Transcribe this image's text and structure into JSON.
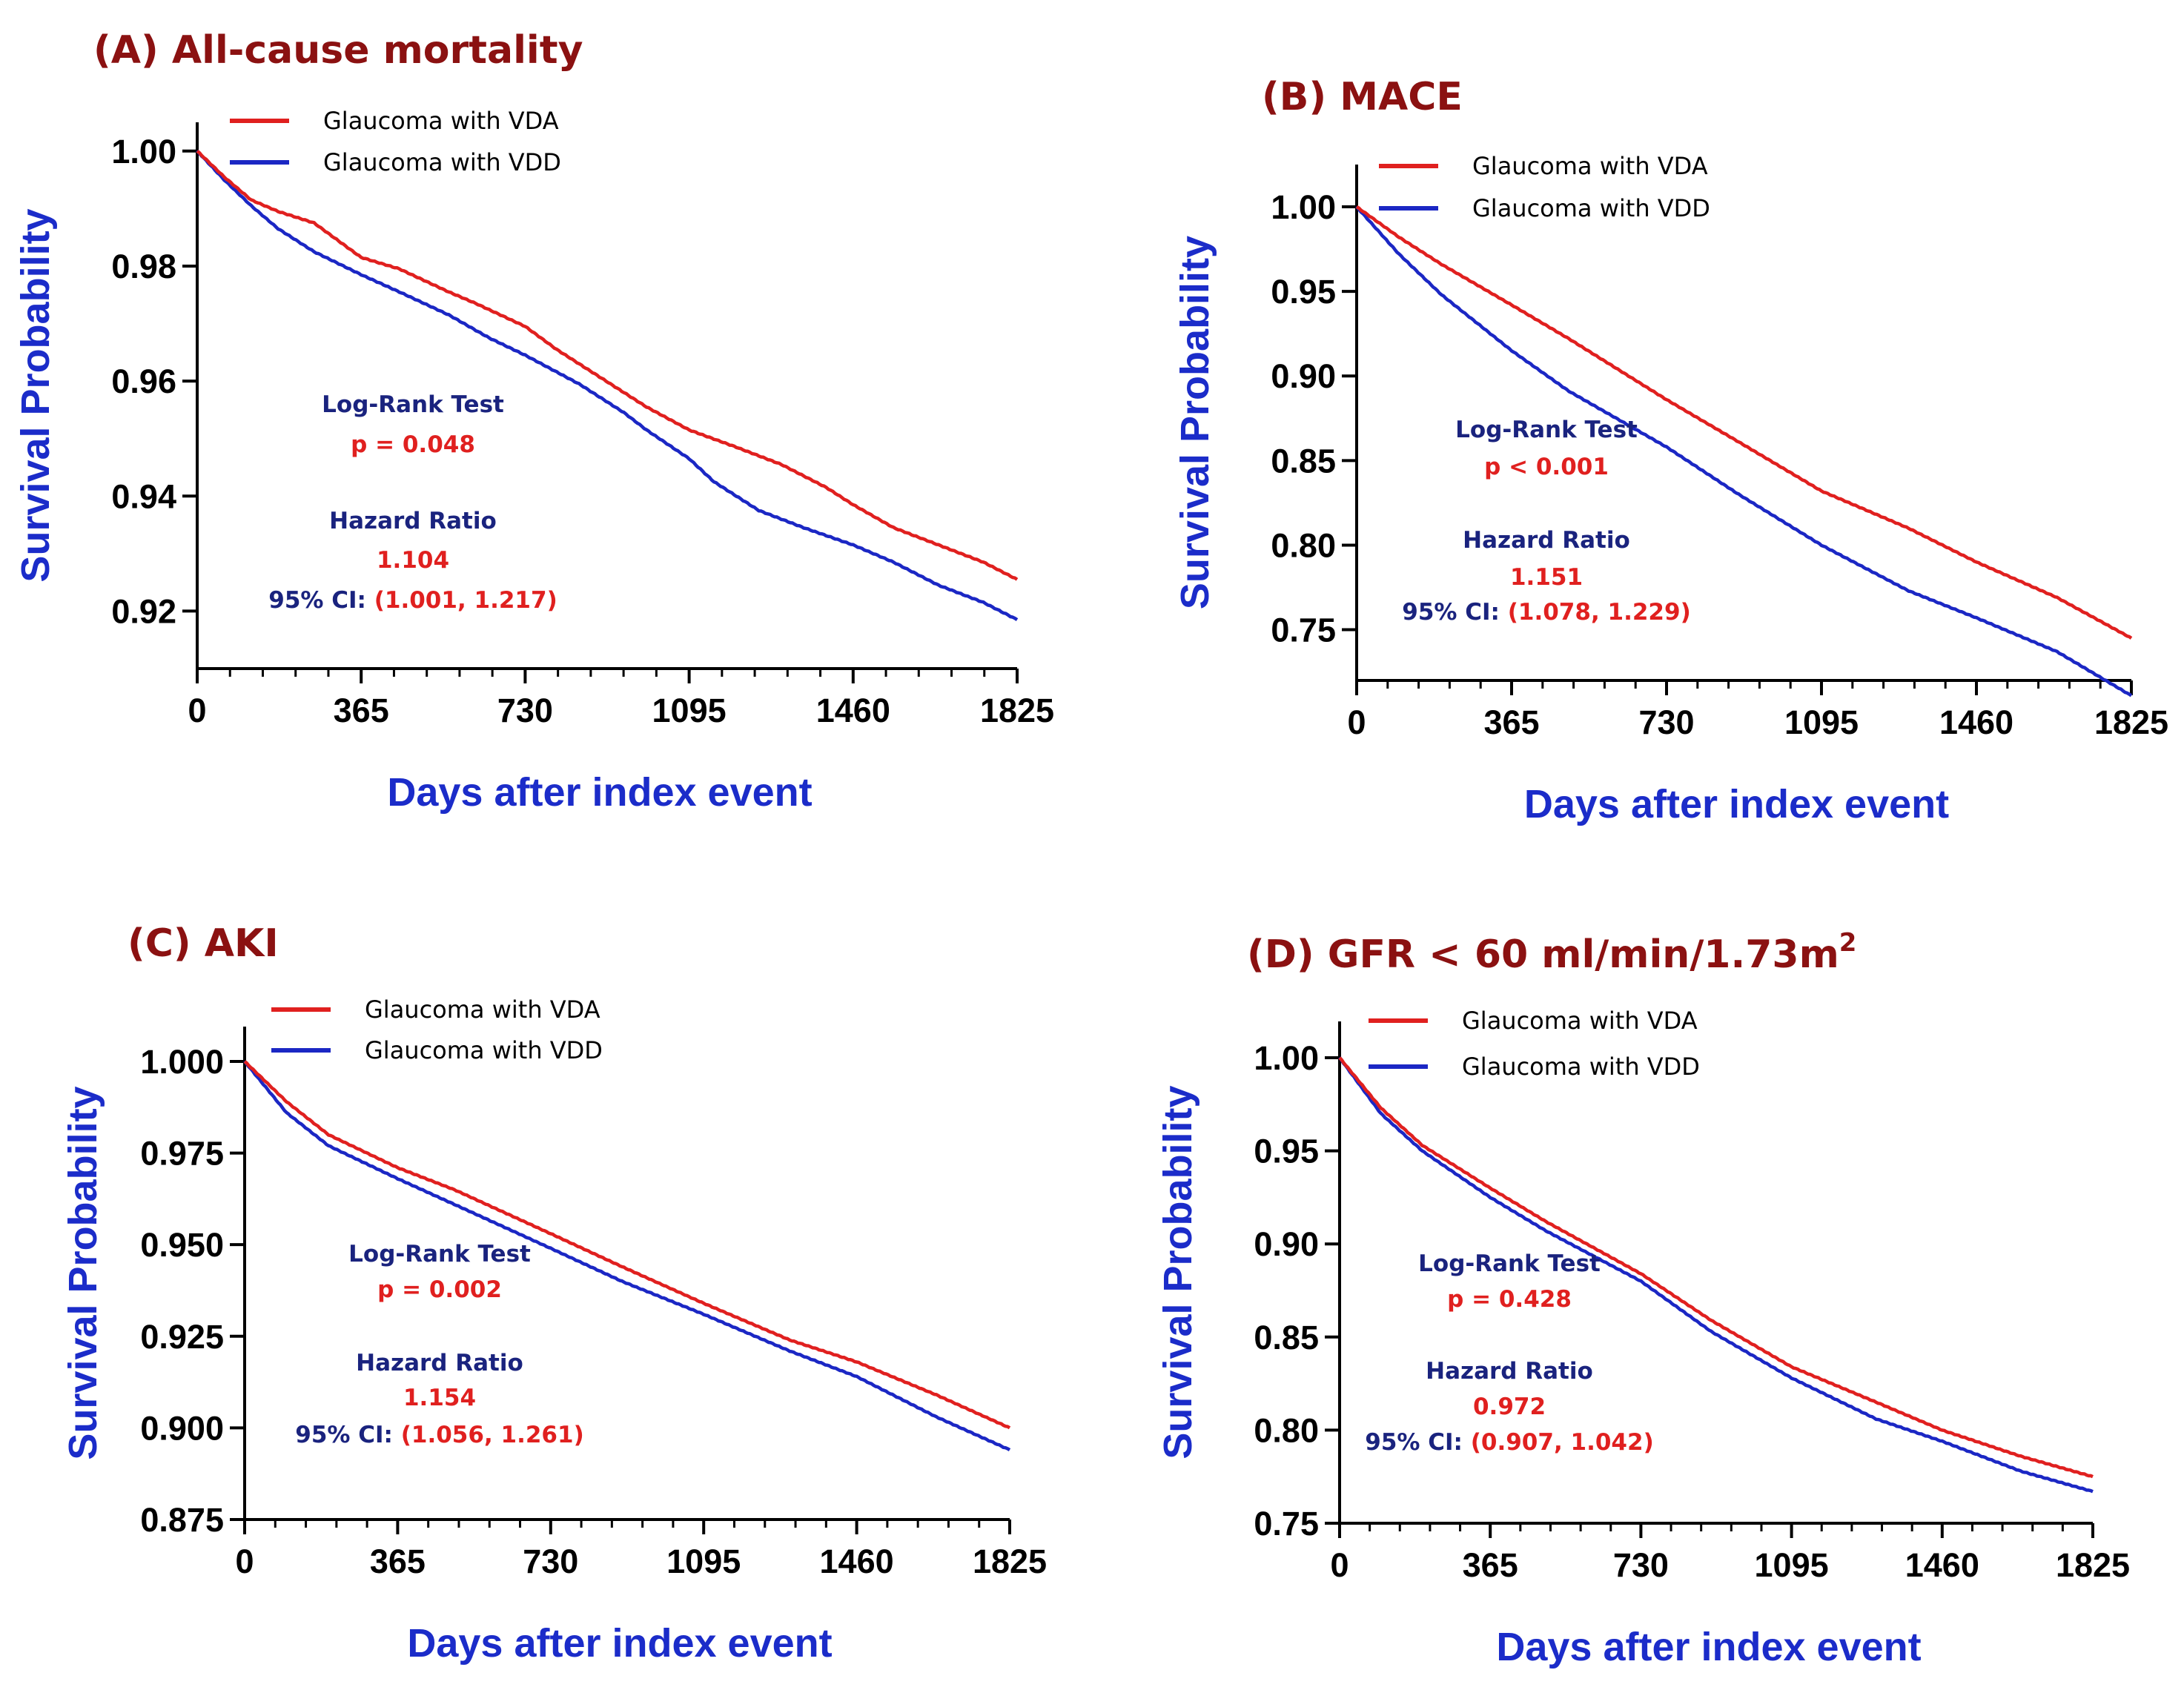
{
  "colors": {
    "title": "#8B1111",
    "axis_label": "#1B2CC9",
    "annotation_label": "#1A237E",
    "annotation_value": "#E0201F",
    "vda": "#E0201F",
    "vdd": "#1B27C4"
  },
  "chart_data": [
    {
      "id": "A",
      "type": "line",
      "title": "(A) All-cause mortality",
      "title_superscript": "",
      "xlabel": "Days after index event",
      "ylabel": "Survival Probability",
      "xlim": [
        0,
        1825
      ],
      "ylim": [
        0.91,
        1.005
      ],
      "xticks": [
        0,
        365,
        730,
        1095,
        1460,
        1825
      ],
      "xtick_labels": [
        "0",
        "365",
        "730",
        "1095",
        "1460",
        "1825"
      ],
      "yticks": [
        0.92,
        0.94,
        0.96,
        0.98,
        1.0
      ],
      "ytick_labels": [
        "0.92",
        "0.94",
        "0.96",
        "0.98",
        "1.00"
      ],
      "legend_placement": "top-left",
      "annotation": {
        "test_label": "Log-Rank Test",
        "p_value": "p = 0.048",
        "hr_label": "Hazard Ratio",
        "hr_value": "1.104",
        "ci_label": "95% CI:",
        "ci_value": "(1.001, 1.217)"
      },
      "series": [
        {
          "name": "Glaucoma with VDA",
          "color": "#E0201F",
          "x": [
            0,
            60,
            120,
            180,
            260,
            330,
            365,
            450,
            560,
            620,
            730,
            800,
            900,
            1000,
            1095,
            1200,
            1300,
            1400,
            1460,
            1550,
            1650,
            1750,
            1825
          ],
          "y": [
            1.0,
            0.9955,
            0.9915,
            0.9895,
            0.9875,
            0.9835,
            0.9815,
            0.9795,
            0.9755,
            0.9735,
            0.9695,
            0.9655,
            0.9605,
            0.9555,
            0.9515,
            0.9485,
            0.9455,
            0.9415,
            0.9385,
            0.9345,
            0.9315,
            0.9285,
            0.9255
          ]
        },
        {
          "name": "Glaucoma with VDD",
          "color": "#1B27C4",
          "x": [
            0,
            60,
            120,
            180,
            260,
            365,
            450,
            560,
            650,
            730,
            850,
            950,
            1000,
            1095,
            1150,
            1250,
            1350,
            1460,
            1550,
            1650,
            1750,
            1825
          ],
          "y": [
            1.0,
            0.995,
            0.9905,
            0.9865,
            0.9825,
            0.9785,
            0.9755,
            0.9715,
            0.9675,
            0.9645,
            0.9595,
            0.9545,
            0.9515,
            0.9465,
            0.9425,
            0.9375,
            0.9345,
            0.9315,
            0.9285,
            0.9245,
            0.9215,
            0.9185
          ]
        }
      ]
    },
    {
      "id": "B",
      "type": "line",
      "title": "(B) MACE",
      "title_superscript": "",
      "xlabel": "Days after index event",
      "ylabel": "Survival Probability",
      "xlim": [
        0,
        1825
      ],
      "ylim": [
        0.72,
        1.025
      ],
      "xticks": [
        0,
        365,
        730,
        1095,
        1460,
        1825
      ],
      "xtick_labels": [
        "0",
        "365",
        "730",
        "1095",
        "1460",
        "1825"
      ],
      "yticks": [
        0.75,
        0.8,
        0.85,
        0.9,
        0.95,
        1.0
      ],
      "ytick_labels": [
        "0.75",
        "0.80",
        "0.85",
        "0.90",
        "0.95",
        "1.00"
      ],
      "legend_placement": "top-left",
      "annotation": {
        "test_label": "Log-Rank Test",
        "p_value": "p < 0.001",
        "hr_label": "Hazard Ratio",
        "hr_value": "1.151",
        "ci_label": "95% CI:",
        "ci_value": "(1.078, 1.229)"
      },
      "series": [
        {
          "name": "Glaucoma with VDA",
          "color": "#E0201F",
          "x": [
            0,
            100,
            200,
            365,
            500,
            730,
            900,
            1095,
            1300,
            1460,
            1650,
            1825
          ],
          "y": [
            1.0,
            0.982,
            0.966,
            0.942,
            0.922,
            0.886,
            0.861,
            0.832,
            0.81,
            0.79,
            0.769,
            0.745
          ]
        },
        {
          "name": "Glaucoma with VDD",
          "color": "#1B27C4",
          "x": [
            0,
            100,
            200,
            365,
            500,
            730,
            900,
            1095,
            1300,
            1460,
            1650,
            1825
          ],
          "y": [
            1.0,
            0.972,
            0.948,
            0.915,
            0.891,
            0.858,
            0.83,
            0.8,
            0.773,
            0.757,
            0.737,
            0.711
          ]
        }
      ]
    },
    {
      "id": "C",
      "type": "line",
      "title": "(C) AKI",
      "title_superscript": "",
      "xlabel": "Days after index event",
      "ylabel": "Survival Probability",
      "xlim": [
        0,
        1825
      ],
      "ylim": [
        0.875,
        1.0095
      ],
      "xticks": [
        0,
        365,
        730,
        1095,
        1460,
        1825
      ],
      "xtick_labels": [
        "0",
        "365",
        "730",
        "1095",
        "1460",
        "1825"
      ],
      "yticks": [
        0.875,
        0.9,
        0.925,
        0.95,
        0.975,
        1.0
      ],
      "ytick_labels": [
        "0.875",
        "0.900",
        "0.925",
        "0.950",
        "0.975",
        "1.000"
      ],
      "legend_placement": "top-left",
      "annotation": {
        "test_label": "Log-Rank Test",
        "p_value": "p = 0.002",
        "hr_label": "Hazard Ratio",
        "hr_value": "1.154",
        "ci_label": "95% CI:",
        "ci_value": "(1.056, 1.261)"
      },
      "series": [
        {
          "name": "Glaucoma with VDA",
          "color": "#E0201F",
          "x": [
            0,
            100,
            200,
            365,
            500,
            730,
            900,
            1095,
            1300,
            1460,
            1650,
            1825
          ],
          "y": [
            1.0,
            0.989,
            0.98,
            0.971,
            0.965,
            0.953,
            0.944,
            0.934,
            0.924,
            0.918,
            0.909,
            0.9
          ]
        },
        {
          "name": "Glaucoma with VDD",
          "color": "#1B27C4",
          "x": [
            0,
            100,
            200,
            365,
            500,
            730,
            900,
            1095,
            1300,
            1460,
            1650,
            1825
          ],
          "y": [
            1.0,
            0.986,
            0.977,
            0.968,
            0.961,
            0.949,
            0.94,
            0.931,
            0.921,
            0.914,
            0.903,
            0.894
          ]
        }
      ]
    },
    {
      "id": "D",
      "type": "line",
      "title": "(D) GFR < 60 ml/min/1.73m",
      "title_superscript": "2",
      "xlabel": "Days after index event",
      "ylabel": "Survival Probability",
      "xlim": [
        0,
        1825
      ],
      "ylim": [
        0.75,
        1.0195
      ],
      "xticks": [
        0,
        365,
        730,
        1095,
        1460,
        1825
      ],
      "xtick_labels": [
        "0",
        "365",
        "730",
        "1095",
        "1460",
        "1825"
      ],
      "yticks": [
        0.75,
        0.8,
        0.85,
        0.9,
        0.95,
        1.0
      ],
      "ytick_labels": [
        "0.75",
        "0.80",
        "0.85",
        "0.90",
        "0.95",
        "1.00"
      ],
      "legend_placement": "top-left",
      "annotation": {
        "test_label": "Log-Rank Test",
        "p_value": "p = 0.428",
        "hr_label": "Hazard Ratio",
        "hr_value": "0.972",
        "ci_label": "95% CI:",
        "ci_value": "(0.907, 1.042)"
      },
      "series": [
        {
          "name": "Glaucoma with VDA",
          "color": "#E0201F",
          "x": [
            0,
            100,
            200,
            365,
            500,
            730,
            900,
            1095,
            1300,
            1460,
            1650,
            1825
          ],
          "y": [
            1.0,
            0.973,
            0.953,
            0.93,
            0.912,
            0.884,
            0.859,
            0.834,
            0.815,
            0.8,
            0.786,
            0.775
          ]
        },
        {
          "name": "Glaucoma with VDD",
          "color": "#1B27C4",
          "x": [
            0,
            100,
            200,
            365,
            500,
            730,
            900,
            1095,
            1300,
            1460,
            1650,
            1825
          ],
          "y": [
            1.0,
            0.97,
            0.95,
            0.925,
            0.907,
            0.88,
            0.853,
            0.828,
            0.806,
            0.794,
            0.778,
            0.767
          ]
        }
      ]
    }
  ]
}
